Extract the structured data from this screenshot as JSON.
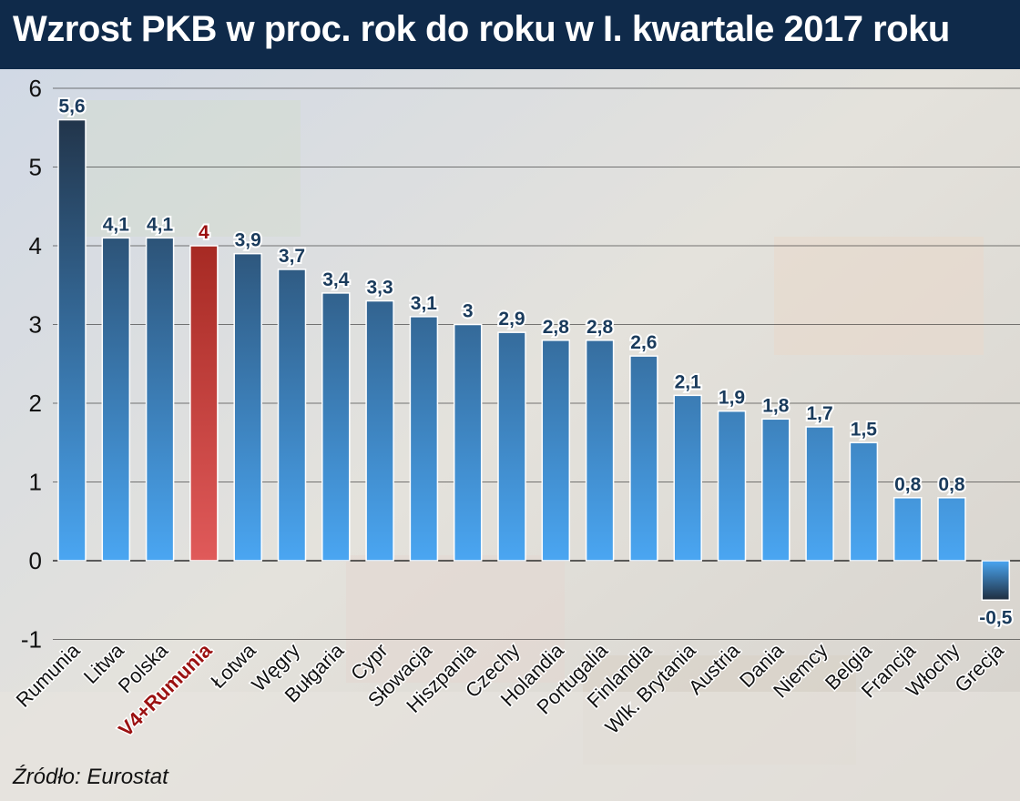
{
  "title": "Wzrost PKB w proc. rok do roku w I. kwartale 2017 roku",
  "source": "Źródło: Eurostat",
  "colors": {
    "header_bg": "#0f2a4a",
    "bar_top": "#1f2d3f",
    "bar_bottom": "#4aa6f2",
    "highlight_top": "#8a1208",
    "highlight_bottom": "#e05a5a",
    "label_default": "#1a3b5c",
    "label_highlight": "#9b1111"
  },
  "chart_data": {
    "type": "bar",
    "categories": [
      "Rumunia",
      "Litwa",
      "Polska",
      "V4+Rumunia",
      "Łotwa",
      "Węgry",
      "Bułgaria",
      "Cypr",
      "Słowacja",
      "Hiszpania",
      "Czechy",
      "Holandia",
      "Portugalia",
      "Finlandia",
      "Wlk. Brytania",
      "Austria",
      "Dania",
      "Niemcy",
      "Belgia",
      "Francja",
      "Włochy",
      "Grecja"
    ],
    "values": [
      5.6,
      4.1,
      4.1,
      4,
      3.9,
      3.7,
      3.4,
      3.3,
      3.1,
      3,
      2.9,
      2.8,
      2.8,
      2.6,
      2.1,
      1.9,
      1.8,
      1.7,
      1.5,
      0.8,
      0.8,
      -0.5
    ],
    "value_labels": [
      "5,6",
      "4,1",
      "4,1",
      "4",
      "3,9",
      "3,7",
      "3,4",
      "3,3",
      "3,1",
      "3",
      "2,9",
      "2,8",
      "2,8",
      "2,6",
      "2,1",
      "1,9",
      "1,8",
      "1,7",
      "1,5",
      "0,8",
      "0,8",
      "-0,5"
    ],
    "highlight": "V4+Rumunia",
    "yticks": [
      "-1",
      "0",
      "1",
      "2",
      "3",
      "4",
      "5",
      "6"
    ],
    "ylim": [
      -1,
      6
    ],
    "grid": true
  }
}
